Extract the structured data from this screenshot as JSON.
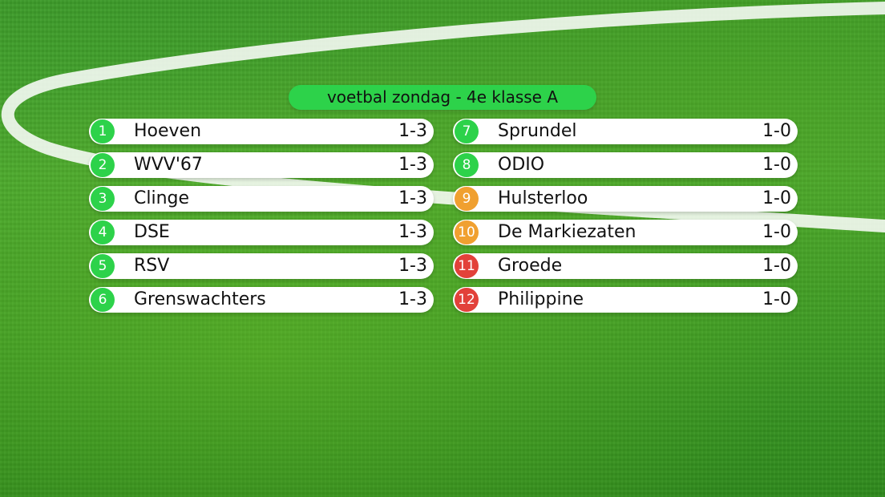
{
  "header": {
    "title": "voetbal zondag - 4e klasse A"
  },
  "colors": {
    "green": "#2dd24a",
    "orange": "#f0a030",
    "red": "#e2413a"
  },
  "standings": [
    {
      "rank": "1",
      "team": "Hoeven",
      "score": "1-3",
      "badge_color": "#2dd24a"
    },
    {
      "rank": "2",
      "team": "WVV'67",
      "score": "1-3",
      "badge_color": "#2dd24a"
    },
    {
      "rank": "3",
      "team": "Clinge",
      "score": "1-3",
      "badge_color": "#2dd24a"
    },
    {
      "rank": "4",
      "team": "DSE",
      "score": "1-3",
      "badge_color": "#2dd24a"
    },
    {
      "rank": "5",
      "team": "RSV",
      "score": "1-3",
      "badge_color": "#2dd24a"
    },
    {
      "rank": "6",
      "team": "Grenswachters",
      "score": "1-3",
      "badge_color": "#2dd24a"
    },
    {
      "rank": "7",
      "team": "Sprundel",
      "score": "1-0",
      "badge_color": "#2dd24a"
    },
    {
      "rank": "8",
      "team": "ODIO",
      "score": "1-0",
      "badge_color": "#2dd24a"
    },
    {
      "rank": "9",
      "team": "Hulsterloo",
      "score": "1-0",
      "badge_color": "#f0a030"
    },
    {
      "rank": "10",
      "team": "De Markiezaten",
      "score": "1-0",
      "badge_color": "#f0a030"
    },
    {
      "rank": "11",
      "team": "Groede",
      "score": "1-0",
      "badge_color": "#e2413a"
    },
    {
      "rank": "12",
      "team": "Philippine",
      "score": "1-0",
      "badge_color": "#e2413a"
    }
  ]
}
